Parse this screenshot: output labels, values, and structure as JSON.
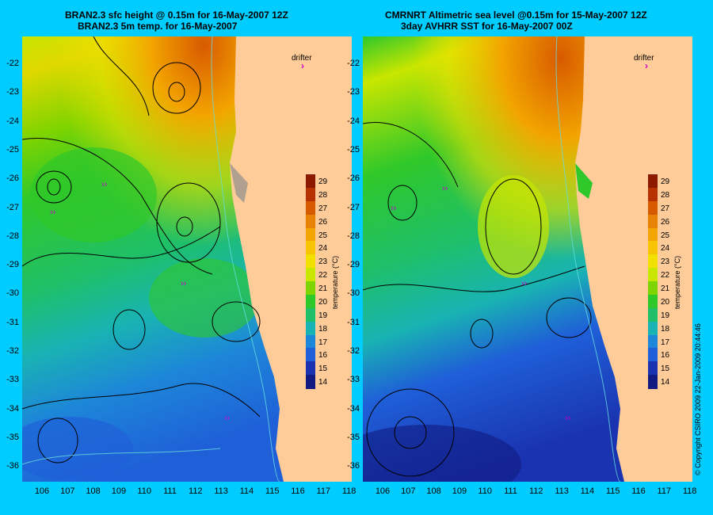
{
  "panels": [
    {
      "title_line1": "BRAN2.3 sfc height @ 0.15m for 16-May-2007 12Z",
      "title_line2": "BRAN2.3 5m temp. for 16-May-2007",
      "drifter_label": "drifter",
      "colorbar_title": "temperature (°C)"
    },
    {
      "title_line1": "CMRNRT Altimetric sea level  @0.15m  for 15-May-2007 12Z",
      "title_line2": "3day AVHRR SST for 16-May-2007 00Z",
      "drifter_label": "drifter",
      "colorbar_title": "temperature (°C)"
    }
  ],
  "lat_labels": [
    "-22",
    "-23",
    "-24",
    "-25",
    "-26",
    "-27",
    "-28",
    "-29",
    "-30",
    "-31",
    "-32",
    "-33",
    "-34",
    "-35",
    "-36"
  ],
  "lon_labels": [
    "106",
    "107",
    "108",
    "109",
    "110",
    "111",
    "112",
    "113",
    "114",
    "115",
    "116",
    "117",
    "118"
  ],
  "colorbar_labels": [
    "29",
    "28",
    "27",
    "26",
    "25",
    "24",
    "23",
    "22",
    "21",
    "20",
    "19",
    "18",
    "17",
    "16",
    "15",
    "14"
  ],
  "colorbar_colors": [
    "#8b1a00",
    "#b83200",
    "#d85a00",
    "#e98200",
    "#f2a400",
    "#f6c400",
    "#f2e000",
    "#c8e600",
    "#7fd400",
    "#2fc82a",
    "#1fbf6a",
    "#19b3b3",
    "#1d86d8",
    "#1f5fd8",
    "#1a33b0",
    "#101a80"
  ],
  "copyright": "© Copyright CSIRO 2009  22-Jan-2009 20:44:46",
  "colors": {
    "background": "#00ccff",
    "land": "#ffcc99",
    "drifter": "#cc00cc"
  }
}
